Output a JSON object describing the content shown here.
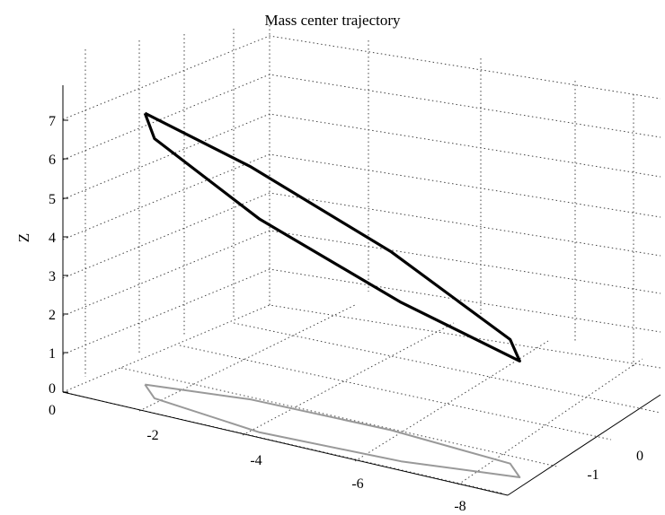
{
  "chart_data": {
    "type": "line",
    "projection": "3d",
    "title": "Mass center trajectory",
    "xlabel": "",
    "ylabel": "",
    "zlabel": "Z",
    "x_ticks": [
      "0",
      "-2",
      "-4",
      "-6",
      "-8"
    ],
    "y_ticks": [
      "-1",
      "0"
    ],
    "z_ticks": [
      "0",
      "1",
      "2",
      "3",
      "4",
      "5",
      "6",
      "7"
    ],
    "xlim": [
      0,
      -8
    ],
    "ylim": [
      -1.8,
      1.2
    ],
    "zlim": [
      0,
      7.5
    ],
    "grid": true,
    "series": [
      {
        "style": "3d-trajectory",
        "color": "#000000",
        "points": [
          {
            "x": -0.7,
            "y": 0.3,
            "z": 7.0
          },
          {
            "x": -2.5,
            "y": 0.8,
            "z": 6.0
          },
          {
            "x": -5.0,
            "y": 0.9,
            "z": 4.6
          },
          {
            "x": -7.2,
            "y": 0.6,
            "z": 3.2
          },
          {
            "x": -7.5,
            "y": 0.0,
            "z": 3.0
          },
          {
            "x": -5.5,
            "y": -0.6,
            "z": 4.1
          },
          {
            "x": -3.0,
            "y": -0.8,
            "z": 5.5
          },
          {
            "x": -1.0,
            "y": -0.3,
            "z": 6.7
          },
          {
            "x": -0.7,
            "y": 0.3,
            "z": 7.0
          }
        ]
      },
      {
        "style": "ground-projection",
        "color": "#999999",
        "points": [
          {
            "x": -0.7,
            "y": 0.3,
            "z": 0
          },
          {
            "x": -2.5,
            "y": 0.8,
            "z": 0
          },
          {
            "x": -5.0,
            "y": 0.9,
            "z": 0
          },
          {
            "x": -7.2,
            "y": 0.6,
            "z": 0
          },
          {
            "x": -7.5,
            "y": 0.0,
            "z": 0
          },
          {
            "x": -5.5,
            "y": -0.6,
            "z": 0
          },
          {
            "x": -3.0,
            "y": -0.8,
            "z": 0
          },
          {
            "x": -1.0,
            "y": -0.3,
            "z": 0
          },
          {
            "x": -0.7,
            "y": 0.3,
            "z": 0
          }
        ]
      }
    ]
  }
}
